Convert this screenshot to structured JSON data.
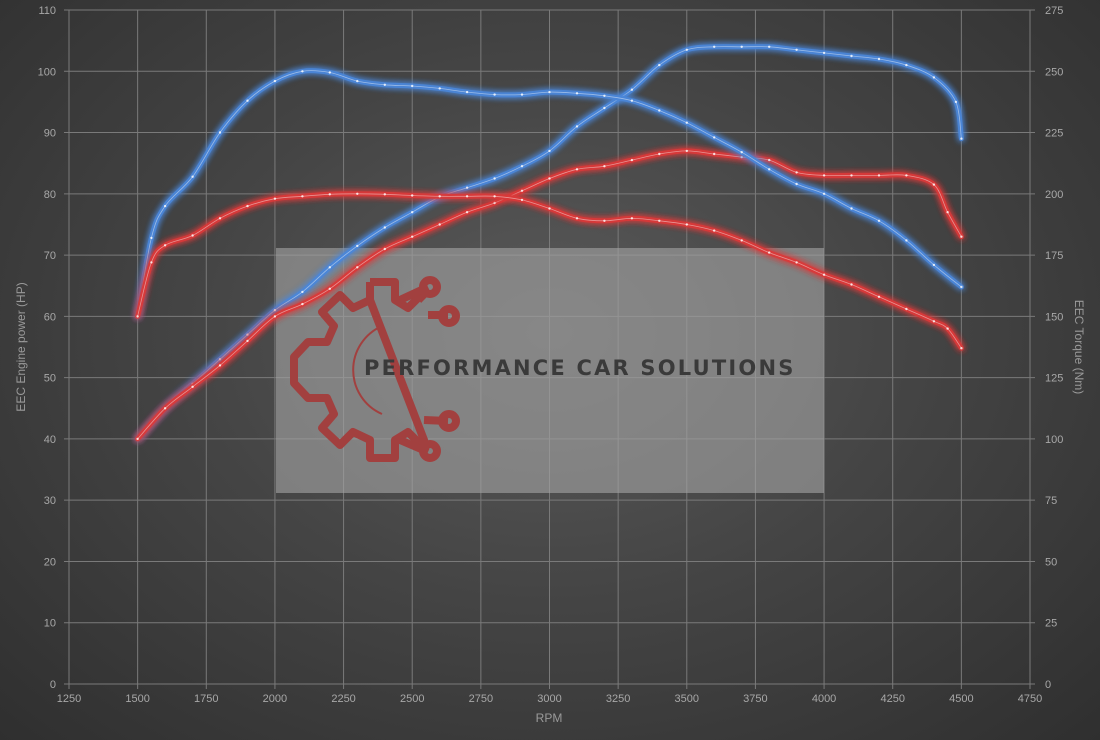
{
  "chart_data": {
    "type": "line",
    "title": "",
    "xlabel": "RPM",
    "ylabel_left": "EEC Engine power (HP)",
    "ylabel_right": "EEC Torque (Nm)",
    "xlim": [
      1250,
      4750
    ],
    "ylim_left": [
      0,
      110
    ],
    "ylim_right": [
      0,
      275
    ],
    "x_ticks": [
      "1250",
      "1500",
      "1750",
      "2000",
      "2250",
      "2500",
      "2750",
      "3000",
      "3250",
      "3500",
      "3750",
      "4000",
      "4250",
      "4500",
      "4750"
    ],
    "y_ticks_left": [
      "0",
      "10",
      "20",
      "30",
      "40",
      "50",
      "60",
      "70",
      "80",
      "90",
      "100",
      "110"
    ],
    "y_ticks_right": [
      "0",
      "25",
      "50",
      "75",
      "100",
      "125",
      "150",
      "175",
      "200",
      "225",
      "250",
      "275"
    ],
    "grid": true,
    "series": [
      {
        "axis": "left",
        "color": "#4a86d8",
        "points": [
          [
            1500,
            40
          ],
          [
            1600,
            45
          ],
          [
            1700,
            49
          ],
          [
            1800,
            53
          ],
          [
            1900,
            57
          ],
          [
            2000,
            61
          ],
          [
            2100,
            64
          ],
          [
            2200,
            68
          ],
          [
            2300,
            71.5
          ],
          [
            2400,
            74.5
          ],
          [
            2500,
            77
          ],
          [
            2600,
            79.5
          ],
          [
            2700,
            81
          ],
          [
            2800,
            82.5
          ],
          [
            2900,
            84.5
          ],
          [
            3000,
            87
          ],
          [
            3100,
            91
          ],
          [
            3200,
            94
          ],
          [
            3300,
            97
          ],
          [
            3400,
            101
          ],
          [
            3500,
            103.5
          ],
          [
            3600,
            104
          ],
          [
            3700,
            104
          ],
          [
            3800,
            104
          ],
          [
            3900,
            103.5
          ],
          [
            4000,
            103
          ],
          [
            4100,
            102.5
          ],
          [
            4200,
            102
          ],
          [
            4300,
            101
          ],
          [
            4400,
            99
          ],
          [
            4480,
            95
          ],
          [
            4500,
            89
          ]
        ]
      },
      {
        "axis": "left",
        "color": "#d93a3a",
        "points": [
          [
            1500,
            40
          ],
          [
            1600,
            45
          ],
          [
            1700,
            48.5
          ],
          [
            1800,
            52
          ],
          [
            1900,
            56
          ],
          [
            2000,
            60
          ],
          [
            2100,
            62
          ],
          [
            2200,
            64.5
          ],
          [
            2300,
            68
          ],
          [
            2400,
            71
          ],
          [
            2500,
            73
          ],
          [
            2600,
            75
          ],
          [
            2700,
            77
          ],
          [
            2800,
            78.5
          ],
          [
            2900,
            80.5
          ],
          [
            3000,
            82.5
          ],
          [
            3100,
            84
          ],
          [
            3200,
            84.5
          ],
          [
            3300,
            85.5
          ],
          [
            3400,
            86.5
          ],
          [
            3500,
            87
          ],
          [
            3600,
            86.5
          ],
          [
            3700,
            86
          ],
          [
            3800,
            85.5
          ],
          [
            3900,
            83.5
          ],
          [
            4000,
            83
          ],
          [
            4100,
            83
          ],
          [
            4200,
            83
          ],
          [
            4300,
            83
          ],
          [
            4400,
            81.5
          ],
          [
            4450,
            77
          ],
          [
            4500,
            73
          ]
        ]
      },
      {
        "axis": "right",
        "color": "#4a86d8",
        "points": [
          [
            1500,
            150
          ],
          [
            1550,
            182
          ],
          [
            1600,
            195
          ],
          [
            1700,
            207
          ],
          [
            1800,
            225
          ],
          [
            1900,
            238
          ],
          [
            2000,
            246
          ],
          [
            2100,
            250
          ],
          [
            2200,
            249.5
          ],
          [
            2300,
            246
          ],
          [
            2400,
            244.5
          ],
          [
            2500,
            244
          ],
          [
            2600,
            243
          ],
          [
            2700,
            241.5
          ],
          [
            2800,
            240.5
          ],
          [
            2900,
            240.5
          ],
          [
            3000,
            241.5
          ],
          [
            3100,
            241
          ],
          [
            3200,
            240
          ],
          [
            3300,
            238
          ],
          [
            3400,
            234
          ],
          [
            3500,
            229
          ],
          [
            3600,
            223
          ],
          [
            3700,
            217
          ],
          [
            3800,
            210
          ],
          [
            3900,
            204
          ],
          [
            4000,
            200
          ],
          [
            4100,
            194
          ],
          [
            4200,
            189
          ],
          [
            4300,
            181
          ],
          [
            4400,
            171
          ],
          [
            4500,
            162
          ]
        ]
      },
      {
        "axis": "right",
        "color": "#d93a3a",
        "points": [
          [
            1500,
            150
          ],
          [
            1550,
            172
          ],
          [
            1600,
            179
          ],
          [
            1700,
            183
          ],
          [
            1800,
            190
          ],
          [
            1900,
            195
          ],
          [
            2000,
            198
          ],
          [
            2100,
            199
          ],
          [
            2200,
            199.8
          ],
          [
            2300,
            200
          ],
          [
            2400,
            199.8
          ],
          [
            2500,
            199.3
          ],
          [
            2600,
            199
          ],
          [
            2700,
            199
          ],
          [
            2800,
            199
          ],
          [
            2900,
            197.5
          ],
          [
            3000,
            194
          ],
          [
            3100,
            190
          ],
          [
            3200,
            189
          ],
          [
            3300,
            190
          ],
          [
            3400,
            189
          ],
          [
            3500,
            187.5
          ],
          [
            3600,
            185
          ],
          [
            3700,
            181
          ],
          [
            3800,
            176
          ],
          [
            3900,
            172
          ],
          [
            4000,
            167
          ],
          [
            4100,
            163
          ],
          [
            4200,
            158
          ],
          [
            4300,
            153
          ],
          [
            4400,
            148
          ],
          [
            4450,
            145
          ],
          [
            4500,
            137
          ]
        ]
      }
    ]
  },
  "watermark": {
    "text": "PERFORMANCE CAR SOLUTIONS",
    "logo_icon": "gear-circuit-icon",
    "logo_color": "#a2403f"
  }
}
